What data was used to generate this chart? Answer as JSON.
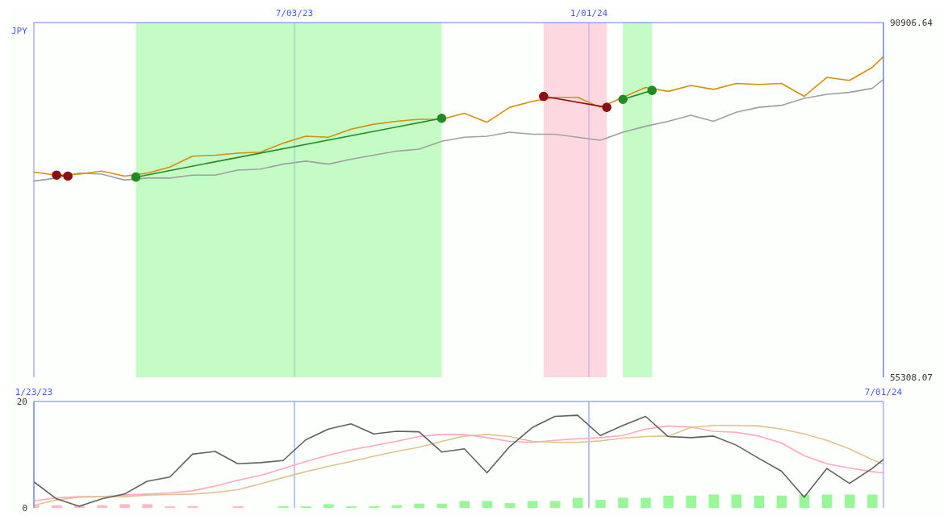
{
  "chart_data": [
    {
      "type": "line",
      "annotations": [
        "JPY"
      ],
      "xlim": [
        "2023-01-23",
        "2024-07-01"
      ],
      "xticks": [
        {
          "value": "2023-07-03",
          "label": "7/03/23"
        },
        {
          "value": "2024-01-01",
          "label": "1/01/24"
        }
      ],
      "ylim": [
        55308.07,
        90906.64
      ],
      "yticks": [
        55308.07,
        90906.64
      ],
      "grid": "x",
      "x": [
        "2023-01-23",
        "2023-02-06",
        "2023-02-20",
        "2023-03-06",
        "2023-03-20",
        "2023-04-03",
        "2023-04-17",
        "2023-05-01",
        "2023-05-15",
        "2023-05-29",
        "2023-06-12",
        "2023-06-26",
        "2023-07-10",
        "2023-07-24",
        "2023-08-07",
        "2023-08-21",
        "2023-09-04",
        "2023-09-18",
        "2023-10-02",
        "2023-10-16",
        "2023-10-30",
        "2023-11-13",
        "2023-11-27",
        "2023-12-11",
        "2023-12-25",
        "2024-01-08",
        "2024-01-22",
        "2024-02-05",
        "2024-02-19",
        "2024-03-04",
        "2024-03-18",
        "2024-04-01",
        "2024-04-15",
        "2024-04-29",
        "2024-05-13",
        "2024-05-27",
        "2024-06-10",
        "2024-06-24",
        "2024-07-01"
      ],
      "bands": [
        {
          "axis": "x",
          "from": "2023-03-27",
          "to": "2023-10-02",
          "color": "#98f898"
        },
        {
          "axis": "x",
          "from": "2023-12-04",
          "to": "2024-01-12",
          "color": "#ffb8c8"
        },
        {
          "axis": "x",
          "from": "2024-01-22",
          "to": "2024-02-09",
          "color": "#98f898"
        }
      ],
      "series": [
        {
          "color": "#a0a0a0",
          "values": [
            75000,
            75300,
            75800,
            75700,
            75100,
            75300,
            75300,
            75600,
            75600,
            76100,
            76200,
            76700,
            77000,
            76700,
            77200,
            77600,
            78000,
            78200,
            79000,
            79400,
            79500,
            79900,
            79700,
            79700,
            79400,
            79100,
            79900,
            80500,
            81000,
            81600,
            81000,
            81900,
            82400,
            82600,
            83300,
            83700,
            83900,
            84300,
            85200
          ]
        },
        {
          "color": "#d4900a",
          "values": [
            75900,
            75600,
            75700,
            76000,
            75500,
            75800,
            76400,
            77500,
            77600,
            77800,
            77900,
            78800,
            79500,
            79400,
            80200,
            80700,
            81000,
            81200,
            81200,
            81800,
            80900,
            82400,
            83000,
            83400,
            83400,
            82400,
            83400,
            84400,
            84000,
            84600,
            84200,
            84800,
            84700,
            84800,
            83500,
            85400,
            85100,
            86400,
            87500
          ]
        },
        {
          "color": "#8b1010",
          "marker": "circle",
          "x": [
            "2023-02-06",
            "2023-02-13"
          ],
          "values": [
            75600,
            75500
          ]
        },
        {
          "color": "#228b22",
          "marker": "circle",
          "x": [
            "2023-03-27",
            "2023-10-02"
          ],
          "values": [
            75400,
            81300
          ]
        },
        {
          "color": "#8b1010",
          "marker": "circle",
          "x": [
            "2023-12-04",
            "2024-01-12"
          ],
          "values": [
            83500,
            82400
          ]
        },
        {
          "color": "#228b22",
          "marker": "circle",
          "x": [
            "2024-01-22",
            "2024-02-09"
          ],
          "values": [
            83200,
            84100
          ]
        }
      ]
    },
    {
      "type": "line",
      "grid": "x",
      "xlim": [
        "2023-01-23",
        "2024-07-01"
      ],
      "xticks": [
        {
          "value": "2023-01-23",
          "label": "1/23/23"
        },
        {
          "value": "2023-07-03",
          "label": null
        },
        {
          "value": "2024-01-01",
          "label": null
        },
        {
          "value": "2024-07-01",
          "label": "7/01/24"
        }
      ],
      "ylim": [
        0,
        20
      ],
      "yticks": [
        0,
        20
      ],
      "x": [
        "2023-01-23",
        "2023-02-06",
        "2023-02-20",
        "2023-03-06",
        "2023-03-20",
        "2023-04-03",
        "2023-04-17",
        "2023-05-01",
        "2023-05-15",
        "2023-05-29",
        "2023-06-12",
        "2023-06-26",
        "2023-07-10",
        "2023-07-24",
        "2023-08-07",
        "2023-08-21",
        "2023-09-04",
        "2023-09-18",
        "2023-10-02",
        "2023-10-16",
        "2023-10-30",
        "2023-11-13",
        "2023-11-27",
        "2023-12-11",
        "2023-12-25",
        "2024-01-08",
        "2024-01-22",
        "2024-02-05",
        "2024-02-19",
        "2024-03-04",
        "2024-03-18",
        "2024-04-01",
        "2024-04-15",
        "2024-04-29",
        "2024-05-13",
        "2024-05-27",
        "2024-06-10",
        "2024-06-24",
        "2024-07-01"
      ],
      "series": [
        {
          "type": "bar",
          "x": [
            "2023-01-23",
            "2023-02-06",
            "2023-02-20",
            "2023-03-06",
            "2023-03-20",
            "2023-04-03",
            "2023-04-17",
            "2023-05-01",
            "2023-05-15",
            "2023-05-29",
            "2023-06-12",
            "2023-06-26",
            "2023-07-10",
            "2023-07-24",
            "2023-08-07",
            "2023-08-21",
            "2023-09-04",
            "2023-09-18",
            "2023-10-02",
            "2023-10-16",
            "2023-10-30",
            "2023-11-13",
            "2023-11-27",
            "2023-12-11",
            "2023-12-25",
            "2024-01-08",
            "2024-01-22",
            "2024-02-05",
            "2024-02-19",
            "2024-03-04",
            "2024-03-18",
            "2024-04-01",
            "2024-04-15",
            "2024-04-29",
            "2024-05-13",
            "2024-05-27",
            "2024-06-10",
            "2024-06-24"
          ],
          "values": [
            0.5,
            0.5,
            0.5,
            0.5,
            0.7,
            0.7,
            0.3,
            0.3,
            null,
            0.3,
            null,
            0.3,
            0.3,
            0.7,
            0.3,
            0.3,
            0.5,
            0.8,
            0.8,
            1.3,
            1.3,
            0.9,
            1.3,
            1.3,
            1.9,
            1.5,
            1.9,
            1.9,
            2.3,
            2.3,
            2.5,
            2.5,
            2.3,
            2.3,
            2.5,
            2.5,
            2.5,
            2.5
          ],
          "colors": [
            "#ffb8c8",
            "#ffb8c8",
            "#ffb8c8",
            "#ffb8c8",
            "#ffb8c8",
            "#ffb8c8",
            "#ffb8c8",
            "#ffb8c8",
            "#ffb8c8",
            "#ffb8c8",
            "#98f898",
            "#98f898",
            "#98f898",
            "#98f898",
            "#98f898",
            "#98f898",
            "#98f898",
            "#98f898",
            "#98f898",
            "#98f898",
            "#98f898",
            "#98f898",
            "#98f898",
            "#98f898",
            "#98f898",
            "#98f898",
            "#98f898",
            "#98f898",
            "#98f898",
            "#98f898",
            "#98f898",
            "#98f898",
            "#98f898",
            "#98f898",
            "#98f898",
            "#98f898",
            "#98f898",
            "#98f898"
          ]
        },
        {
          "color": "#ffa8c0",
          "values": [
            1.3,
            1.9,
            2.1,
            2.1,
            2.4,
            2.6,
            2.8,
            3.2,
            4.1,
            5.2,
            6.1,
            7.4,
            8.7,
            9.9,
            10.9,
            11.7,
            12.5,
            13.4,
            13.8,
            13.8,
            13.2,
            12.5,
            12.3,
            12.7,
            13.0,
            13.2,
            13.6,
            14.8,
            15.4,
            15.2,
            14.4,
            14.2,
            13.5,
            12.2,
            9.8,
            8.3,
            7.5,
            6.8,
            6.6
          ]
        },
        {
          "color": "#e0c490",
          "values": [
            0.5,
            1.5,
            2.0,
            2.1,
            2.1,
            2.4,
            2.5,
            2.6,
            2.9,
            3.4,
            4.5,
            5.7,
            6.8,
            7.8,
            8.7,
            9.7,
            10.6,
            11.4,
            12.5,
            13.5,
            13.8,
            13.4,
            12.5,
            12.3,
            12.3,
            12.6,
            13.1,
            13.4,
            13.5,
            15.1,
            15.5,
            15.5,
            15.4,
            14.8,
            13.9,
            12.7,
            11.1,
            9.1,
            8.2
          ]
        },
        {
          "color": "#606060",
          "values": [
            4.9,
            1.7,
            0.3,
            1.7,
            2.6,
            5.0,
            5.8,
            10.1,
            10.6,
            8.3,
            8.5,
            8.9,
            12.8,
            14.8,
            15.8,
            13.9,
            14.4,
            14.3,
            10.5,
            11.1,
            6.6,
            11.5,
            15.1,
            17.2,
            17.4,
            13.6,
            15.5,
            17.2,
            13.4,
            13.2,
            13.5,
            11.8,
            9.3,
            6.9,
            2.0,
            7.4,
            4.6,
            7.4,
            9.1
          ]
        }
      ]
    }
  ]
}
